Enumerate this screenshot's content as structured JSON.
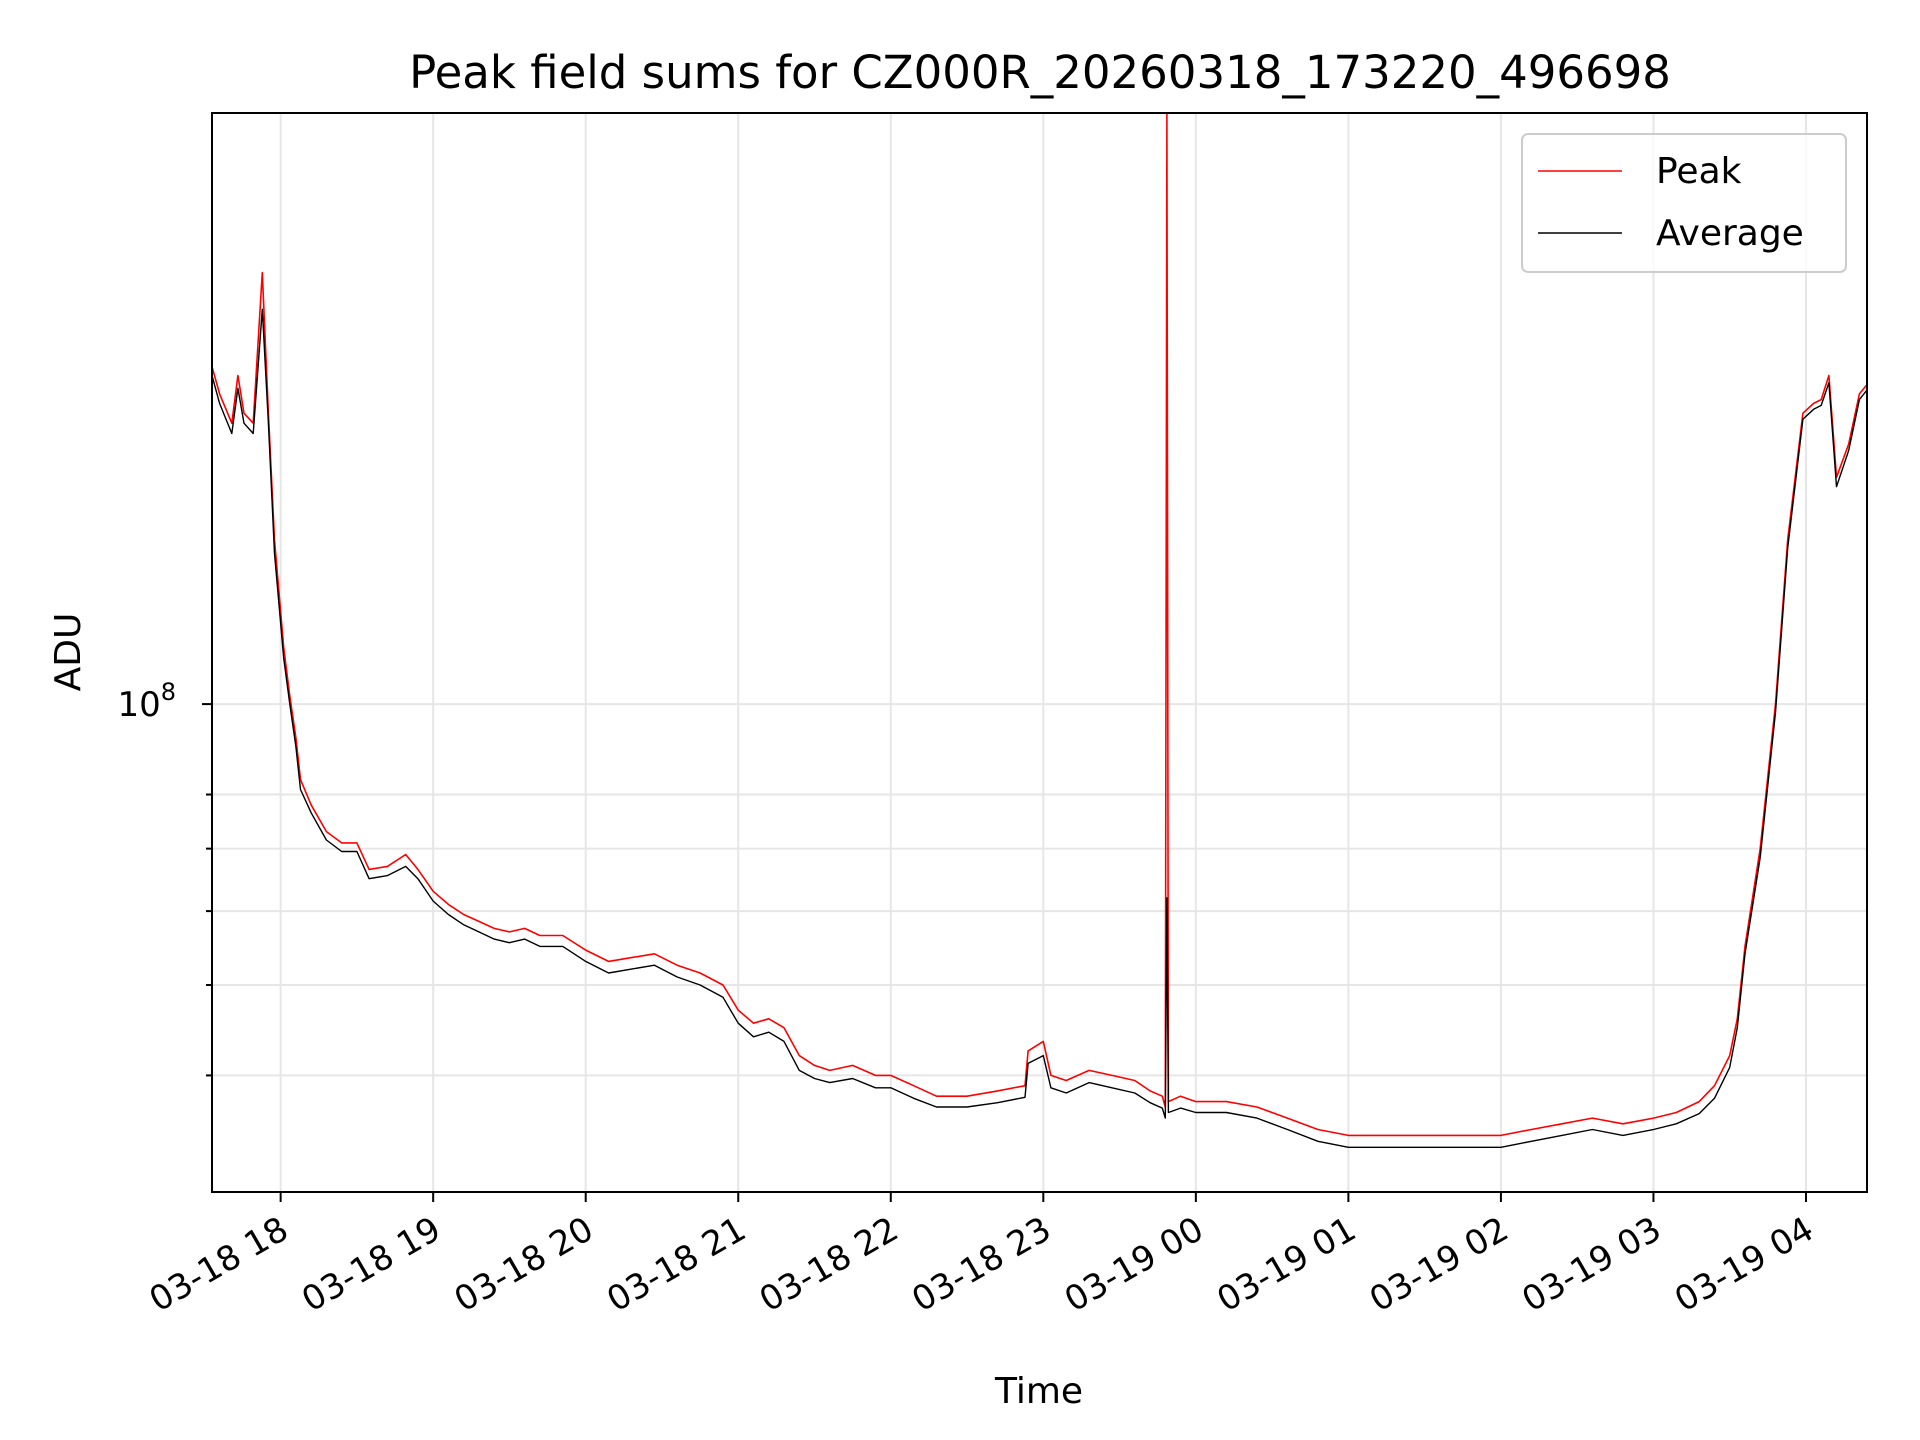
{
  "chart_data": {
    "type": "line",
    "title": "Peak field sums for CZ000R_20260318_173220_496698",
    "xlabel": "Time",
    "ylabel": "ADU",
    "yscale": "log",
    "xlim_hours": [
      17.55,
      28.4
    ],
    "ylim": [
      30000000,
      430000000
    ],
    "x_ticks": [
      {
        "label": "03-18 18",
        "hour": 18
      },
      {
        "label": "03-18 19",
        "hour": 19
      },
      {
        "label": "03-18 20",
        "hour": 20
      },
      {
        "label": "03-18 21",
        "hour": 21
      },
      {
        "label": "03-18 22",
        "hour": 22
      },
      {
        "label": "03-18 23",
        "hour": 23
      },
      {
        "label": "03-19 00",
        "hour": 24
      },
      {
        "label": "03-19 01",
        "hour": 25
      },
      {
        "label": "03-19 02",
        "hour": 26
      },
      {
        "label": "03-19 03",
        "hour": 27
      },
      {
        "label": "03-19 04",
        "hour": 28
      }
    ],
    "y_major_tick": {
      "base": "10",
      "exp": "8",
      "value": 100000000
    },
    "y_minor_ticks": [
      40000000,
      50000000,
      60000000,
      70000000,
      80000000
    ],
    "legend": {
      "position": "upper right"
    },
    "series": [
      {
        "name": "Peak",
        "color": "#ff0000",
        "points": [
          [
            17.55,
            230000000
          ],
          [
            17.6,
            215000000
          ],
          [
            17.68,
            200000000
          ],
          [
            17.72,
            225000000
          ],
          [
            17.76,
            205000000
          ],
          [
            17.82,
            200000000
          ],
          [
            17.88,
            290000000
          ],
          [
            17.92,
            205000000
          ],
          [
            17.96,
            150000000
          ],
          [
            18.02,
            115000000
          ],
          [
            18.06,
            102000000
          ],
          [
            18.1,
            92000000
          ],
          [
            18.13,
            83000000
          ],
          [
            18.2,
            78000000
          ],
          [
            18.3,
            73000000
          ],
          [
            18.4,
            71000000
          ],
          [
            18.5,
            71000000
          ],
          [
            18.58,
            66500000
          ],
          [
            18.7,
            67000000
          ],
          [
            18.82,
            69000000
          ],
          [
            18.9,
            66500000
          ],
          [
            19.0,
            63000000
          ],
          [
            19.1,
            61000000
          ],
          [
            19.2,
            59500000
          ],
          [
            19.3,
            58500000
          ],
          [
            19.4,
            57500000
          ],
          [
            19.5,
            57000000
          ],
          [
            19.6,
            57500000
          ],
          [
            19.7,
            56500000
          ],
          [
            19.85,
            56500000
          ],
          [
            20.0,
            54500000
          ],
          [
            20.15,
            53000000
          ],
          [
            20.3,
            53500000
          ],
          [
            20.45,
            54000000
          ],
          [
            20.6,
            52500000
          ],
          [
            20.75,
            51500000
          ],
          [
            20.9,
            50000000
          ],
          [
            21.0,
            47000000
          ],
          [
            21.1,
            45500000
          ],
          [
            21.2,
            46000000
          ],
          [
            21.3,
            45000000
          ],
          [
            21.4,
            42000000
          ],
          [
            21.5,
            41000000
          ],
          [
            21.6,
            40500000
          ],
          [
            21.75,
            41000000
          ],
          [
            21.9,
            40000000
          ],
          [
            22.0,
            40000000
          ],
          [
            22.15,
            39000000
          ],
          [
            22.3,
            38000000
          ],
          [
            22.5,
            38000000
          ],
          [
            22.7,
            38500000
          ],
          [
            22.88,
            39000000
          ],
          [
            22.9,
            42500000
          ],
          [
            23.0,
            43500000
          ],
          [
            23.05,
            40000000
          ],
          [
            23.15,
            39500000
          ],
          [
            23.3,
            40500000
          ],
          [
            23.45,
            40000000
          ],
          [
            23.6,
            39500000
          ],
          [
            23.7,
            38500000
          ],
          [
            23.78,
            38000000
          ],
          [
            23.8,
            37000000
          ],
          [
            23.81,
            430000000
          ],
          [
            23.82,
            37500000
          ],
          [
            23.9,
            38000000
          ],
          [
            24.0,
            37500000
          ],
          [
            24.2,
            37500000
          ],
          [
            24.4,
            37000000
          ],
          [
            24.6,
            36000000
          ],
          [
            24.8,
            35000000
          ],
          [
            25.0,
            34500000
          ],
          [
            25.2,
            34500000
          ],
          [
            25.4,
            34500000
          ],
          [
            25.6,
            34500000
          ],
          [
            25.8,
            34500000
          ],
          [
            26.0,
            34500000
          ],
          [
            26.2,
            35000000
          ],
          [
            26.4,
            35500000
          ],
          [
            26.6,
            36000000
          ],
          [
            26.8,
            35500000
          ],
          [
            27.0,
            36000000
          ],
          [
            27.15,
            36500000
          ],
          [
            27.3,
            37500000
          ],
          [
            27.4,
            39000000
          ],
          [
            27.5,
            42000000
          ],
          [
            27.55,
            46000000
          ],
          [
            27.6,
            55000000
          ],
          [
            27.7,
            70000000
          ],
          [
            27.8,
            100000000
          ],
          [
            27.88,
            150000000
          ],
          [
            27.98,
            205000000
          ],
          [
            28.05,
            210000000
          ],
          [
            28.1,
            212000000
          ],
          [
            28.15,
            225000000
          ],
          [
            28.2,
            175000000
          ],
          [
            28.28,
            190000000
          ],
          [
            28.35,
            215000000
          ],
          [
            28.4,
            220000000
          ]
        ]
      },
      {
        "name": "Average",
        "color": "#000000",
        "points": [
          [
            17.55,
            225000000
          ],
          [
            17.6,
            210000000
          ],
          [
            17.68,
            195000000
          ],
          [
            17.72,
            218000000
          ],
          [
            17.76,
            200000000
          ],
          [
            17.82,
            195000000
          ],
          [
            17.88,
            265000000
          ],
          [
            17.92,
            200000000
          ],
          [
            17.96,
            145000000
          ],
          [
            18.02,
            112000000
          ],
          [
            18.06,
            100000000
          ],
          [
            18.1,
            90000000
          ],
          [
            18.13,
            81000000
          ],
          [
            18.2,
            76500000
          ],
          [
            18.3,
            71500000
          ],
          [
            18.4,
            69500000
          ],
          [
            18.5,
            69500000
          ],
          [
            18.58,
            65000000
          ],
          [
            18.7,
            65500000
          ],
          [
            18.82,
            67000000
          ],
          [
            18.9,
            65000000
          ],
          [
            19.0,
            61500000
          ],
          [
            19.1,
            59500000
          ],
          [
            19.2,
            58000000
          ],
          [
            19.3,
            57000000
          ],
          [
            19.4,
            56000000
          ],
          [
            19.5,
            55500000
          ],
          [
            19.6,
            56000000
          ],
          [
            19.7,
            55000000
          ],
          [
            19.85,
            55000000
          ],
          [
            20.0,
            53000000
          ],
          [
            20.15,
            51500000
          ],
          [
            20.3,
            52000000
          ],
          [
            20.45,
            52500000
          ],
          [
            20.6,
            51000000
          ],
          [
            20.75,
            50000000
          ],
          [
            20.9,
            48500000
          ],
          [
            21.0,
            45500000
          ],
          [
            21.1,
            44000000
          ],
          [
            21.2,
            44500000
          ],
          [
            21.3,
            43500000
          ],
          [
            21.4,
            40500000
          ],
          [
            21.5,
            39700000
          ],
          [
            21.6,
            39300000
          ],
          [
            21.75,
            39700000
          ],
          [
            21.9,
            38800000
          ],
          [
            22.0,
            38800000
          ],
          [
            22.15,
            37800000
          ],
          [
            22.3,
            37000000
          ],
          [
            22.5,
            37000000
          ],
          [
            22.7,
            37400000
          ],
          [
            22.88,
            37900000
          ],
          [
            22.9,
            41200000
          ],
          [
            23.0,
            42000000
          ],
          [
            23.05,
            38800000
          ],
          [
            23.15,
            38300000
          ],
          [
            23.3,
            39300000
          ],
          [
            23.45,
            38800000
          ],
          [
            23.6,
            38300000
          ],
          [
            23.7,
            37400000
          ],
          [
            23.78,
            36900000
          ],
          [
            23.8,
            36000000
          ],
          [
            23.81,
            62000000
          ],
          [
            23.82,
            36500000
          ],
          [
            23.9,
            36900000
          ],
          [
            24.0,
            36500000
          ],
          [
            24.2,
            36500000
          ],
          [
            24.4,
            36000000
          ],
          [
            24.6,
            35000000
          ],
          [
            24.8,
            34000000
          ],
          [
            25.0,
            33500000
          ],
          [
            25.2,
            33500000
          ],
          [
            25.4,
            33500000
          ],
          [
            25.6,
            33500000
          ],
          [
            25.8,
            33500000
          ],
          [
            26.0,
            33500000
          ],
          [
            26.2,
            34000000
          ],
          [
            26.4,
            34500000
          ],
          [
            26.6,
            35000000
          ],
          [
            26.8,
            34500000
          ],
          [
            27.0,
            35000000
          ],
          [
            27.15,
            35500000
          ],
          [
            27.3,
            36400000
          ],
          [
            27.4,
            37800000
          ],
          [
            27.5,
            40800000
          ],
          [
            27.55,
            45000000
          ],
          [
            27.6,
            54000000
          ],
          [
            27.7,
            68500000
          ],
          [
            27.8,
            98000000
          ],
          [
            27.88,
            147000000
          ],
          [
            27.98,
            202000000
          ],
          [
            28.05,
            207000000
          ],
          [
            28.1,
            209000000
          ],
          [
            28.15,
            221000000
          ],
          [
            28.2,
            171000000
          ],
          [
            28.28,
            187000000
          ],
          [
            28.35,
            212000000
          ],
          [
            28.4,
            217000000
          ]
        ]
      }
    ]
  }
}
